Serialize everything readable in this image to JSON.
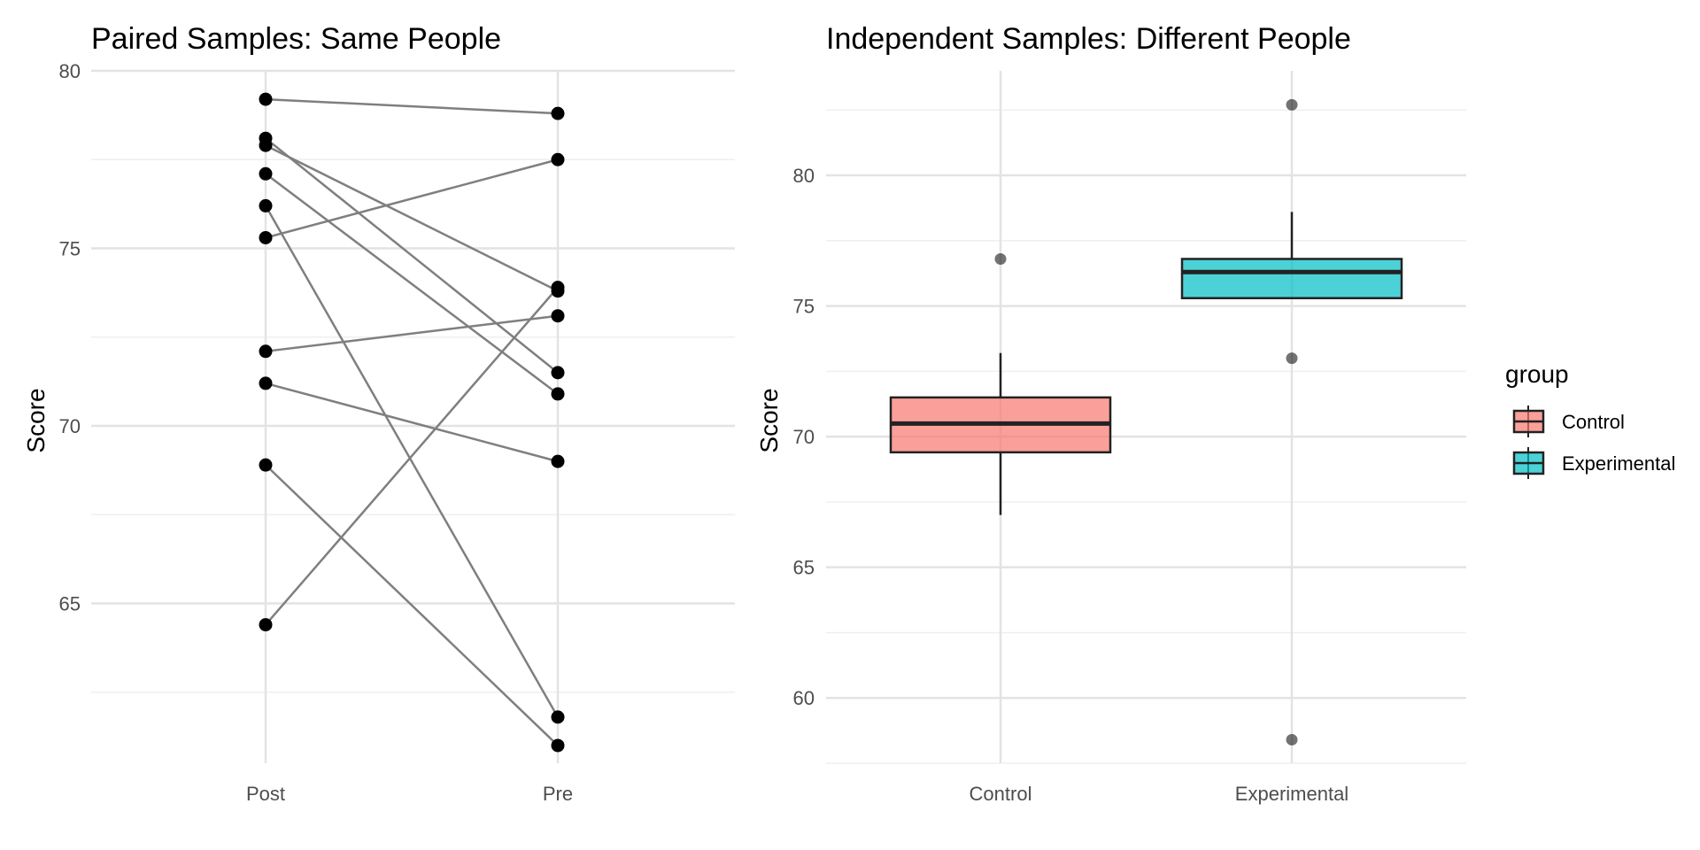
{
  "chart_data": [
    {
      "type": "line",
      "subtype": "paired-points",
      "title": "Paired Samples: Same People",
      "xlabel": "",
      "ylabel": "Score",
      "categories": [
        "Post",
        "Pre"
      ],
      "ylim": [
        60.5,
        80
      ],
      "yticks": [
        65,
        70,
        75,
        80
      ],
      "grid": true,
      "pairs": [
        {
          "post": 79.2,
          "pre": 78.8
        },
        {
          "post": 78.1,
          "pre": 71.5
        },
        {
          "post": 77.9,
          "pre": 73.8
        },
        {
          "post": 77.1,
          "pre": 70.9
        },
        {
          "post": 76.2,
          "pre": 61.8
        },
        {
          "post": 75.3,
          "pre": 77.5
        },
        {
          "post": 72.1,
          "pre": 73.1
        },
        {
          "post": 71.2,
          "pre": 69.0
        },
        {
          "post": 68.9,
          "pre": 61.0
        },
        {
          "post": 64.4,
          "pre": 73.9
        }
      ],
      "line_color": "#7f7f7f",
      "point_color": "#000000"
    },
    {
      "type": "box",
      "title": "Independent Samples: Different People",
      "xlabel": "",
      "ylabel": "Score",
      "categories": [
        "Control",
        "Experimental"
      ],
      "ylim": [
        57.5,
        84
      ],
      "yticks": [
        60,
        65,
        70,
        75,
        80
      ],
      "grid": true,
      "boxes": [
        {
          "group": "Control",
          "q1": 69.4,
          "median": 70.5,
          "q3": 71.5,
          "whisker_low": 67.0,
          "whisker_high": 73.2,
          "outliers": [
            76.8
          ],
          "color": "#F8766D"
        },
        {
          "group": "Experimental",
          "q1": 75.3,
          "median": 76.3,
          "q3": 76.8,
          "whisker_low": 75.3,
          "whisker_high": 78.6,
          "outliers": [
            82.7,
            73.0,
            58.4
          ],
          "color": "#00BFC4"
        }
      ],
      "legend": {
        "title": "group",
        "position": "right",
        "items": [
          {
            "label": "Control",
            "color": "#F8766D"
          },
          {
            "label": "Experimental",
            "color": "#00BFC4"
          }
        ]
      }
    }
  ]
}
